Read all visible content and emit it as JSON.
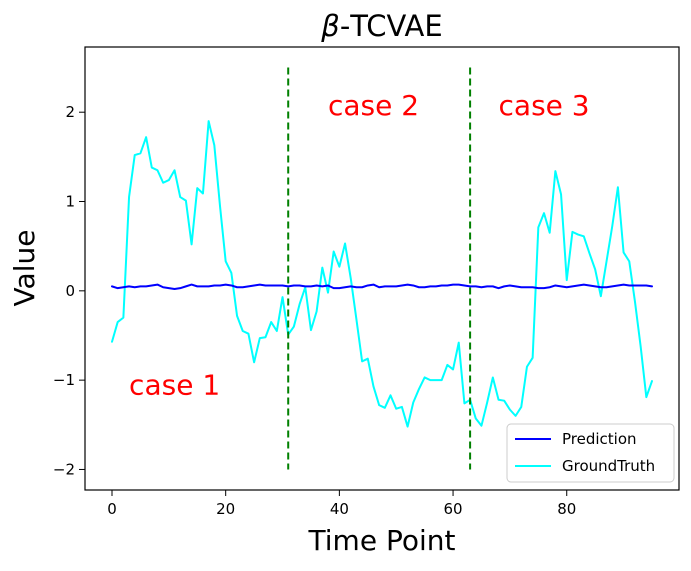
{
  "chart_data": {
    "type": "line",
    "title": "β-TCVAE",
    "title_symbol": "β",
    "title_rest": "-TCVAE",
    "xlabel": "Time Point",
    "ylabel": "Value",
    "xlim": [
      -4.75,
      99.75
    ],
    "ylim": [
      -2.23,
      2.73
    ],
    "xticks": [
      0,
      20,
      40,
      60,
      80
    ],
    "xtick_labels": [
      "0",
      "20",
      "40",
      "60",
      "80"
    ],
    "yticks": [
      -2,
      -1,
      0,
      1,
      2
    ],
    "ytick_labels": [
      "−2",
      "−1",
      "0",
      "1",
      "2"
    ],
    "grid": false,
    "legend_position": "lower-right",
    "legend": [
      {
        "name": "Prediction",
        "color": "#0000ff"
      },
      {
        "name": "GroundTruth",
        "color": "#00ffff"
      }
    ],
    "series": [
      {
        "name": "Prediction",
        "color": "#0000ff",
        "x": [
          0,
          1,
          2,
          3,
          4,
          5,
          6,
          7,
          8,
          9,
          10,
          11,
          12,
          13,
          14,
          15,
          16,
          17,
          18,
          19,
          20,
          21,
          22,
          23,
          24,
          25,
          26,
          27,
          28,
          29,
          30,
          31,
          32,
          33,
          34,
          35,
          36,
          37,
          38,
          39,
          40,
          41,
          42,
          43,
          44,
          45,
          46,
          47,
          48,
          49,
          50,
          51,
          52,
          53,
          54,
          55,
          56,
          57,
          58,
          59,
          60,
          61,
          62,
          63,
          64,
          65,
          66,
          67,
          68,
          69,
          70,
          71,
          72,
          73,
          74,
          75,
          76,
          77,
          78,
          79,
          80,
          81,
          82,
          83,
          84,
          85,
          86,
          87,
          88,
          89,
          90,
          91,
          92,
          93,
          94,
          95
        ],
        "values": [
          0.05,
          0.03,
          0.04,
          0.05,
          0.04,
          0.05,
          0.05,
          0.06,
          0.07,
          0.04,
          0.03,
          0.02,
          0.03,
          0.05,
          0.07,
          0.05,
          0.05,
          0.05,
          0.06,
          0.06,
          0.07,
          0.06,
          0.04,
          0.04,
          0.05,
          0.06,
          0.07,
          0.06,
          0.06,
          0.06,
          0.06,
          0.05,
          0.06,
          0.06,
          0.05,
          0.05,
          0.06,
          0.05,
          0.06,
          0.03,
          0.03,
          0.04,
          0.05,
          0.04,
          0.04,
          0.06,
          0.07,
          0.04,
          0.05,
          0.05,
          0.05,
          0.06,
          0.07,
          0.06,
          0.04,
          0.04,
          0.05,
          0.05,
          0.06,
          0.06,
          0.07,
          0.07,
          0.06,
          0.05,
          0.05,
          0.04,
          0.05,
          0.05,
          0.03,
          0.05,
          0.06,
          0.05,
          0.04,
          0.04,
          0.04,
          0.03,
          0.03,
          0.04,
          0.06,
          0.05,
          0.04,
          0.05,
          0.06,
          0.07,
          0.06,
          0.05,
          0.04,
          0.04,
          0.05,
          0.06,
          0.07,
          0.06,
          0.06,
          0.06,
          0.06,
          0.05
        ]
      },
      {
        "name": "GroundTruth",
        "color": "#00ffff",
        "x": [
          0,
          1,
          2,
          3,
          4,
          5,
          6,
          7,
          8,
          9,
          10,
          11,
          12,
          13,
          14,
          15,
          16,
          17,
          18,
          19,
          20,
          21,
          22,
          23,
          24,
          25,
          26,
          27,
          28,
          29,
          30,
          31,
          32,
          33,
          34,
          35,
          36,
          37,
          38,
          39,
          40,
          41,
          42,
          43,
          44,
          45,
          46,
          47,
          48,
          49,
          50,
          51,
          52,
          53,
          54,
          55,
          56,
          57,
          58,
          59,
          60,
          61,
          62,
          63,
          64,
          65,
          66,
          67,
          68,
          69,
          70,
          71,
          72,
          73,
          74,
          75,
          76,
          77,
          78,
          79,
          80,
          81,
          82,
          83,
          84,
          85,
          86,
          87,
          88,
          89,
          90,
          91,
          92,
          93,
          94,
          95
        ],
        "values": [
          -0.57,
          -0.35,
          -0.3,
          1.05,
          1.52,
          1.54,
          1.72,
          1.38,
          1.35,
          1.21,
          1.24,
          1.35,
          1.05,
          1.01,
          0.52,
          1.15,
          1.09,
          1.9,
          1.63,
          0.95,
          0.33,
          0.2,
          -0.28,
          -0.45,
          -0.48,
          -0.8,
          -0.53,
          -0.52,
          -0.35,
          -0.45,
          -0.07,
          -0.49,
          -0.4,
          -0.15,
          0.04,
          -0.44,
          -0.23,
          0.26,
          -0.02,
          0.44,
          0.27,
          0.53,
          0.14,
          -0.32,
          -0.79,
          -0.76,
          -1.07,
          -1.28,
          -1.31,
          -1.17,
          -1.32,
          -1.3,
          -1.52,
          -1.25,
          -1.1,
          -0.97,
          -1.0,
          -1.0,
          -1.0,
          -0.83,
          -0.88,
          -0.58,
          -1.26,
          -1.22,
          -1.43,
          -1.51,
          -1.25,
          -0.97,
          -1.22,
          -1.23,
          -1.33,
          -1.4,
          -1.3,
          -0.85,
          -0.75,
          0.71,
          0.87,
          0.65,
          1.34,
          1.08,
          0.12,
          0.66,
          0.63,
          0.61,
          0.42,
          0.24,
          -0.06,
          0.33,
          0.72,
          1.16,
          0.43,
          0.33,
          -0.12,
          -0.62,
          -1.19,
          -1.01
        ]
      }
    ],
    "vlines": [
      {
        "x": 31,
        "y_from": -2.0,
        "y_to": 2.5,
        "color": "#008000",
        "style": "dashed"
      },
      {
        "x": 63,
        "y_from": -2.0,
        "y_to": 2.5,
        "color": "#008000",
        "style": "dashed"
      }
    ],
    "annotations": [
      {
        "text": "case 1",
        "x": 3,
        "y": -1.05,
        "color": "#ff0000"
      },
      {
        "text": "case 2",
        "x": 38,
        "y": 2.08,
        "color": "#ff0000"
      },
      {
        "text": "case 3",
        "x": 68,
        "y": 2.08,
        "color": "#ff0000"
      }
    ]
  }
}
